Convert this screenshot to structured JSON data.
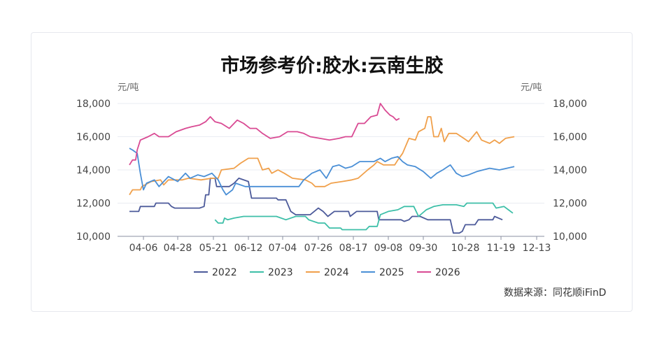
{
  "chart_data": {
    "type": "line",
    "title": "市场参考价:胶水:云南生胶",
    "ylabel_left": "元/吨",
    "ylabel_right": "元/吨",
    "ylim": [
      10000,
      18000
    ],
    "yticks": [
      "10,000",
      "12,000",
      "14,000",
      "16,000",
      "18,000"
    ],
    "yticks_right": [
      "10,000",
      "12,000",
      "14,000",
      "16,000",
      "18,000"
    ],
    "xticks": [
      "04-06",
      "04-28",
      "05-21",
      "06-12",
      "07-04",
      "07-26",
      "08-17",
      "09-08",
      "09-30",
      "10-28",
      "11-19",
      "12-13"
    ],
    "legend_position": "bottom",
    "grid": true,
    "series": [
      {
        "name": "2022",
        "color": "#4c5a9a",
        "points": [
          [
            "03-28",
            11500
          ],
          [
            "04-03",
            11500
          ],
          [
            "04-04",
            11800
          ],
          [
            "04-13",
            11800
          ],
          [
            "04-14",
            12000
          ],
          [
            "04-22",
            12000
          ],
          [
            "04-24",
            11800
          ],
          [
            "04-26",
            11700
          ],
          [
            "05-12",
            11700
          ],
          [
            "05-15",
            11800
          ],
          [
            "05-16",
            12500
          ],
          [
            "05-18",
            12500
          ],
          [
            "05-19",
            13500
          ],
          [
            "05-22",
            13500
          ],
          [
            "05-23",
            13000
          ],
          [
            "05-31",
            13000
          ],
          [
            "06-03",
            13200
          ],
          [
            "06-06",
            13500
          ],
          [
            "06-12",
            13300
          ],
          [
            "06-14",
            12300
          ],
          [
            "06-30",
            12300
          ],
          [
            "07-01",
            12200
          ],
          [
            "07-06",
            12200
          ],
          [
            "07-09",
            11500
          ],
          [
            "07-12",
            11300
          ],
          [
            "07-21",
            11300
          ],
          [
            "07-26",
            11700
          ],
          [
            "07-29",
            11500
          ],
          [
            "08-01",
            11200
          ],
          [
            "08-05",
            11500
          ],
          [
            "08-14",
            11500
          ],
          [
            "08-15",
            11200
          ],
          [
            "08-19",
            11500
          ],
          [
            "09-01",
            11500
          ],
          [
            "09-02",
            11000
          ],
          [
            "09-16",
            11000
          ],
          [
            "09-18",
            10900
          ],
          [
            "09-21",
            11000
          ],
          [
            "09-23",
            11200
          ],
          [
            "09-28",
            11200
          ],
          [
            "10-03",
            11000
          ],
          [
            "10-18",
            11000
          ],
          [
            "10-20",
            10200
          ],
          [
            "10-24",
            10200
          ],
          [
            "10-26",
            10300
          ],
          [
            "10-28",
            10700
          ],
          [
            "11-03",
            10700
          ],
          [
            "11-05",
            11000
          ],
          [
            "11-14",
            11000
          ],
          [
            "11-15",
            11200
          ],
          [
            "11-20",
            11000
          ]
        ]
      },
      {
        "name": "2023",
        "color": "#3dbfa8",
        "points": [
          [
            "05-22",
            11000
          ],
          [
            "05-24",
            10800
          ],
          [
            "05-27",
            10800
          ],
          [
            "05-28",
            11100
          ],
          [
            "05-30",
            11000
          ],
          [
            "06-03",
            11100
          ],
          [
            "06-09",
            11200
          ],
          [
            "06-30",
            11200
          ],
          [
            "07-06",
            11000
          ],
          [
            "07-12",
            11200
          ],
          [
            "07-18",
            11200
          ],
          [
            "07-20",
            11000
          ],
          [
            "07-26",
            10800
          ],
          [
            "07-30",
            10800
          ],
          [
            "08-02",
            10500
          ],
          [
            "08-09",
            10500
          ],
          [
            "08-10",
            10400
          ],
          [
            "08-25",
            10400
          ],
          [
            "08-27",
            10600
          ],
          [
            "09-01",
            10600
          ],
          [
            "09-03",
            11300
          ],
          [
            "09-08",
            11500
          ],
          [
            "09-14",
            11600
          ],
          [
            "09-18",
            11800
          ],
          [
            "09-24",
            11800
          ],
          [
            "09-27",
            11200
          ],
          [
            "10-02",
            11600
          ],
          [
            "10-07",
            11800
          ],
          [
            "10-13",
            11900
          ],
          [
            "10-22",
            11900
          ],
          [
            "10-27",
            11800
          ],
          [
            "10-29",
            12000
          ],
          [
            "11-14",
            12000
          ],
          [
            "11-16",
            11700
          ],
          [
            "11-21",
            11800
          ],
          [
            "11-24",
            11600
          ],
          [
            "11-27",
            11400
          ]
        ]
      },
      {
        "name": "2024",
        "color": "#f0a04b",
        "points": [
          [
            "03-28",
            12500
          ],
          [
            "03-30",
            12800
          ],
          [
            "04-04",
            12800
          ],
          [
            "04-05",
            13000
          ],
          [
            "04-11",
            13300
          ],
          [
            "04-17",
            13400
          ],
          [
            "04-19",
            13100
          ],
          [
            "04-22",
            13400
          ],
          [
            "05-01",
            13400
          ],
          [
            "05-05",
            13500
          ],
          [
            "05-13",
            13400
          ],
          [
            "05-20",
            13500
          ],
          [
            "05-24",
            13500
          ],
          [
            "05-26",
            14000
          ],
          [
            "06-03",
            14100
          ],
          [
            "06-07",
            14400
          ],
          [
            "06-12",
            14700
          ],
          [
            "06-18",
            14700
          ],
          [
            "06-21",
            14000
          ],
          [
            "06-25",
            14100
          ],
          [
            "06-27",
            13800
          ],
          [
            "07-01",
            14000
          ],
          [
            "07-05",
            13800
          ],
          [
            "07-10",
            13500
          ],
          [
            "07-18",
            13400
          ],
          [
            "07-22",
            13200
          ],
          [
            "07-24",
            13000
          ],
          [
            "07-30",
            13000
          ],
          [
            "08-03",
            13200
          ],
          [
            "08-10",
            13300
          ],
          [
            "08-16",
            13400
          ],
          [
            "08-20",
            13500
          ],
          [
            "08-26",
            14000
          ],
          [
            "08-30",
            14300
          ],
          [
            "09-01",
            14500
          ],
          [
            "09-05",
            14300
          ],
          [
            "09-12",
            14300
          ],
          [
            "09-14",
            14600
          ],
          [
            "09-17",
            15000
          ],
          [
            "09-21",
            15900
          ],
          [
            "09-25",
            15800
          ],
          [
            "09-27",
            16300
          ],
          [
            "10-01",
            16500
          ],
          [
            "10-03",
            17200
          ],
          [
            "10-05",
            17200
          ],
          [
            "10-07",
            16000
          ],
          [
            "10-10",
            16000
          ],
          [
            "10-12",
            16500
          ],
          [
            "10-14",
            15700
          ],
          [
            "10-17",
            16200
          ],
          [
            "10-22",
            16200
          ],
          [
            "10-27",
            15900
          ],
          [
            "10-30",
            15700
          ],
          [
            "11-04",
            16300
          ],
          [
            "11-07",
            15800
          ],
          [
            "11-12",
            15600
          ],
          [
            "11-15",
            15800
          ],
          [
            "11-18",
            15600
          ],
          [
            "11-22",
            15900
          ],
          [
            "11-28",
            16000
          ]
        ]
      },
      {
        "name": "2025",
        "color": "#4a8fd6",
        "points": [
          [
            "03-28",
            15300
          ],
          [
            "03-30",
            15200
          ],
          [
            "04-02",
            15000
          ],
          [
            "04-04",
            13800
          ],
          [
            "04-06",
            12800
          ],
          [
            "04-08",
            13200
          ],
          [
            "04-13",
            13400
          ],
          [
            "04-16",
            13000
          ],
          [
            "04-22",
            13600
          ],
          [
            "04-28",
            13300
          ],
          [
            "05-03",
            13800
          ],
          [
            "05-06",
            13500
          ],
          [
            "05-11",
            13700
          ],
          [
            "05-15",
            13600
          ],
          [
            "05-20",
            13800
          ],
          [
            "05-24",
            13400
          ],
          [
            "05-27",
            12800
          ],
          [
            "05-29",
            12500
          ],
          [
            "06-02",
            12800
          ],
          [
            "06-04",
            13200
          ],
          [
            "06-10",
            13000
          ],
          [
            "06-16",
            13000
          ],
          [
            "07-14",
            13000
          ],
          [
            "07-17",
            13400
          ],
          [
            "07-22",
            13800
          ],
          [
            "07-27",
            14000
          ],
          [
            "07-31",
            13500
          ],
          [
            "08-04",
            14200
          ],
          [
            "08-08",
            14300
          ],
          [
            "08-12",
            14100
          ],
          [
            "08-16",
            14200
          ],
          [
            "08-21",
            14500
          ],
          [
            "08-30",
            14500
          ],
          [
            "09-03",
            14700
          ],
          [
            "09-06",
            14500
          ],
          [
            "09-10",
            14700
          ],
          [
            "09-14",
            14800
          ],
          [
            "09-17",
            14500
          ],
          [
            "09-20",
            14300
          ],
          [
            "09-25",
            14200
          ],
          [
            "09-30",
            13900
          ],
          [
            "10-05",
            13500
          ],
          [
            "10-09",
            13800
          ],
          [
            "10-13",
            14000
          ],
          [
            "10-18",
            14300
          ],
          [
            "10-22",
            13800
          ],
          [
            "10-26",
            13600
          ],
          [
            "10-30",
            13700
          ],
          [
            "11-04",
            13900
          ],
          [
            "11-08",
            14000
          ],
          [
            "11-12",
            14100
          ],
          [
            "11-18",
            14000
          ],
          [
            "11-23",
            14100
          ],
          [
            "11-28",
            14200
          ]
        ]
      },
      {
        "name": "2026",
        "color": "#d94a93",
        "points": [
          [
            "03-28",
            14300
          ],
          [
            "03-30",
            14600
          ],
          [
            "04-01",
            14600
          ],
          [
            "04-02",
            15200
          ],
          [
            "04-04",
            15800
          ],
          [
            "04-09",
            16000
          ],
          [
            "04-13",
            16200
          ],
          [
            "04-16",
            16000
          ],
          [
            "04-22",
            16000
          ],
          [
            "04-27",
            16300
          ],
          [
            "05-03",
            16500
          ],
          [
            "05-07",
            16600
          ],
          [
            "05-12",
            16700
          ],
          [
            "05-16",
            16900
          ],
          [
            "05-19",
            17200
          ],
          [
            "05-22",
            16900
          ],
          [
            "05-26",
            16800
          ],
          [
            "05-31",
            16500
          ],
          [
            "06-05",
            17000
          ],
          [
            "06-09",
            16800
          ],
          [
            "06-13",
            16500
          ],
          [
            "06-17",
            16500
          ],
          [
            "06-21",
            16200
          ],
          [
            "06-26",
            15900
          ],
          [
            "07-02",
            16000
          ],
          [
            "07-07",
            16300
          ],
          [
            "07-13",
            16300
          ],
          [
            "07-17",
            16200
          ],
          [
            "07-21",
            16000
          ],
          [
            "07-27",
            15900
          ],
          [
            "08-02",
            15800
          ],
          [
            "08-08",
            15900
          ],
          [
            "08-12",
            16000
          ],
          [
            "08-16",
            16000
          ],
          [
            "08-20",
            16800
          ],
          [
            "08-24",
            16800
          ],
          [
            "08-28",
            17200
          ],
          [
            "09-01",
            17300
          ],
          [
            "09-03",
            18000
          ],
          [
            "09-06",
            17600
          ],
          [
            "09-09",
            17300
          ],
          [
            "09-11",
            17200
          ],
          [
            "09-13",
            17000
          ],
          [
            "09-15",
            17100
          ]
        ]
      }
    ]
  },
  "source": "数据来源：同花顺iFinD"
}
